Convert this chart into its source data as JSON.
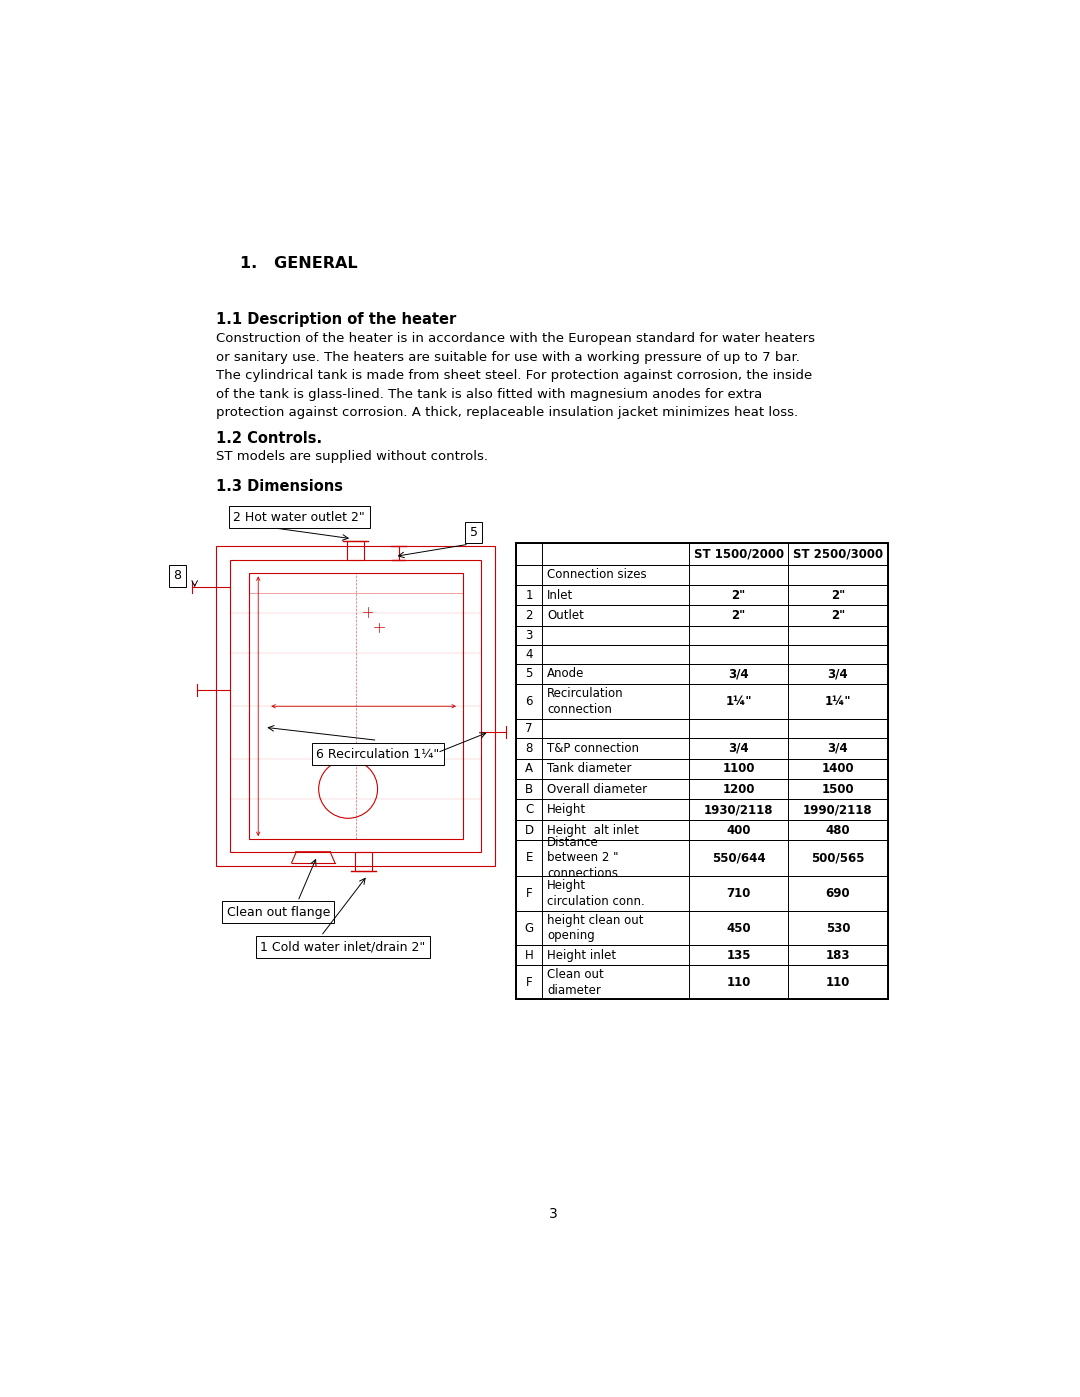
{
  "title_general": "1.   GENERAL",
  "section_11_title": "1.1 Description of the heater",
  "section_11_text": "Construction of the heater is in accordance with the European standard for water heaters\nor sanitary use. The heaters are suitable for use with a working pressure of up to 7 bar.\nThe cylindrical tank is made from sheet steel. For protection against corrosion, the inside\nof the tank is glass-lined. The tank is also fitted with magnesium anodes for extra\nprotection against corrosion. A thick, replaceable insulation jacket minimizes heat loss.",
  "section_12_title": "1.2 Controls.",
  "section_12_text": "ST models are supplied without controls.",
  "section_13_title": "1.3 Dimensions",
  "table_header_col3": "ST 1500/2000",
  "table_header_col4": "ST 2500/3000",
  "table_rows": [
    [
      "",
      "Connection sizes",
      "",
      ""
    ],
    [
      "1",
      "Inlet",
      "2\"",
      "2\""
    ],
    [
      "2",
      "Outlet",
      "2\"",
      "2\""
    ],
    [
      "3",
      "",
      "",
      ""
    ],
    [
      "4",
      "",
      "",
      ""
    ],
    [
      "5",
      "Anode",
      "3/4",
      "3/4"
    ],
    [
      "6",
      "Recirculation\nconnection",
      "1¼\"",
      "1¼\""
    ],
    [
      "7",
      "",
      "",
      ""
    ],
    [
      "8",
      "T&P connection",
      "3/4",
      "3/4"
    ],
    [
      "A",
      "Tank diameter",
      "1100",
      "1400"
    ],
    [
      "B",
      "Overall diameter",
      "1200",
      "1500"
    ],
    [
      "C",
      "Height",
      "1930/2118",
      "1990/2118"
    ],
    [
      "D",
      "Height  alt inlet",
      "400",
      "480"
    ],
    [
      "E",
      "Distance\nbetween 2 \"\nconnections",
      "550/644",
      "500/565"
    ],
    [
      "F",
      "Height\ncirculation conn.",
      "710",
      "690"
    ],
    [
      "G",
      "height clean out\nopening",
      "450",
      "530"
    ],
    [
      "H",
      "Height inlet",
      "135",
      "183"
    ],
    [
      "F",
      "Clean out\ndiameter",
      "110",
      "110"
    ]
  ],
  "diagram_labels": {
    "hot_water": "2 Hot water outlet 2\"",
    "recirculation": "6 Recirculation 1¼\"",
    "cold_water": "1 Cold water inlet/drain 2\"",
    "clean_out": "Clean out flange",
    "label_5": "5",
    "label_8": "8"
  },
  "page_number": "3",
  "bg_color": "#ffffff",
  "text_color": "#000000",
  "diagram_color": "#cc0000"
}
